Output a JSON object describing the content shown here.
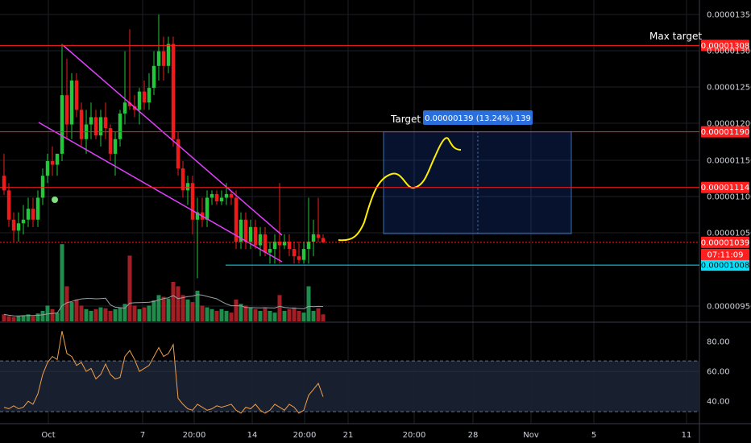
{
  "chart_data": {
    "type": "candlestick",
    "price_axis": {
      "ticks": [
        "0.00001350",
        "0.00001300",
        "0.00001250",
        "0.00001200",
        "0.00001150",
        "0.00001100",
        "0.00001050",
        "0.00000950"
      ],
      "range": [
        9.3e-06,
        1.37e-05
      ]
    },
    "rsi_axis": {
      "ticks": [
        "80.00",
        "60.00",
        "40.00"
      ],
      "range": [
        25,
        93
      ],
      "band": [
        33,
        67
      ]
    },
    "time_axis": {
      "ticks": [
        "Oct",
        "7",
        "20:00",
        "14",
        "20:00",
        "21",
        "20:00",
        "28",
        "Nov",
        "5",
        "11"
      ]
    },
    "levels": [
      {
        "label": "0.00001308",
        "value": 1.308e-05,
        "color": "#ff1f1f"
      },
      {
        "label": "0.00001190",
        "value": 1.19e-05,
        "color": "#ff1f1f"
      },
      {
        "label": "0.00001114",
        "value": 1.114e-05,
        "color": "#ff1f1f"
      },
      {
        "label": "0.00001039",
        "value": 1.039e-05,
        "color": "#ff1f1f",
        "dotted": true
      },
      {
        "label": "0.00001008",
        "value": 1.008e-05,
        "color": "#00e5ff"
      }
    ],
    "countdown": "07:11:09",
    "annotations": {
      "max_target": "Max target",
      "target_label": "Target",
      "target_box": "0.00000139 (13.24%) 139"
    },
    "candles": [
      [
        1.13e-05,
        1.16e-05,
        1.104e-05,
        1.11e-05
      ],
      [
        1.11e-05,
        1.12e-05,
        1.06e-05,
        1.07e-05
      ],
      [
        1.07e-05,
        1.08e-05,
        1.04e-05,
        1.055e-05
      ],
      [
        1.055e-05,
        1.08e-05,
        1.04e-05,
        1.065e-05
      ],
      [
        1.065e-05,
        1.09e-05,
        1.05e-05,
        1.07e-05
      ],
      [
        1.07e-05,
        1.1e-05,
        1.06e-05,
        1.085e-05
      ],
      [
        1.085e-05,
        1.1e-05,
        1.06e-05,
        1.07e-05
      ],
      [
        1.07e-05,
        1.11e-05,
        1.06e-05,
        1.1e-05
      ],
      [
        1.1e-05,
        1.14e-05,
        1.09e-05,
        1.13e-05
      ],
      [
        1.13e-05,
        1.16e-05,
        1.12e-05,
        1.15e-05
      ],
      [
        1.15e-05,
        1.17e-05,
        1.13e-05,
        1.145e-05
      ],
      [
        1.145e-05,
        1.16e-05,
        1.13e-05,
        1.16e-05
      ],
      [
        1.16e-05,
        1.31e-05,
        1.15e-05,
        1.24e-05
      ],
      [
        1.24e-05,
        1.29e-05,
        1.18e-05,
        1.2e-05
      ],
      [
        1.2e-05,
        1.27e-05,
        1.18e-05,
        1.26e-05
      ],
      [
        1.26e-05,
        1.27e-05,
        1.21e-05,
        1.22e-05
      ],
      [
        1.22e-05,
        1.23e-05,
        1.17e-05,
        1.18e-05
      ],
      [
        1.18e-05,
        1.22e-05,
        1.16e-05,
        1.2e-05
      ],
      [
        1.2e-05,
        1.23e-05,
        1.18e-05,
        1.21e-05
      ],
      [
        1.21e-05,
        1.22e-05,
        1.18e-05,
        1.185e-05
      ],
      [
        1.185e-05,
        1.22e-05,
        1.17e-05,
        1.21e-05
      ],
      [
        1.21e-05,
        1.23e-05,
        1.18e-05,
        1.195e-05
      ],
      [
        1.195e-05,
        1.2e-05,
        1.15e-05,
        1.16e-05
      ],
      [
        1.16e-05,
        1.19e-05,
        1.13e-05,
        1.18e-05
      ],
      [
        1.18e-05,
        1.22e-05,
        1.17e-05,
        1.215e-05
      ],
      [
        1.215e-05,
        1.3e-05,
        1.2e-05,
        1.23e-05
      ],
      [
        1.23e-05,
        1.33e-05,
        1.22e-05,
        1.225e-05
      ],
      [
        1.225e-05,
        1.24e-05,
        1.21e-05,
        1.22e-05
      ],
      [
        1.22e-05,
        1.25e-05,
        1.2e-05,
        1.245e-05
      ],
      [
        1.245e-05,
        1.26e-05,
        1.22e-05,
        1.23e-05
      ],
      [
        1.23e-05,
        1.27e-05,
        1.22e-05,
        1.25e-05
      ],
      [
        1.25e-05,
        1.3e-05,
        1.24e-05,
        1.28e-05
      ],
      [
        1.28e-05,
        1.35e-05,
        1.26e-05,
        1.3e-05
      ],
      [
        1.3e-05,
        1.32e-05,
        1.26e-05,
        1.28e-05
      ],
      [
        1.28e-05,
        1.32e-05,
        1.27e-05,
        1.31e-05
      ],
      [
        1.31e-05,
        1.32e-05,
        1.17e-05,
        1.18e-05
      ],
      [
        1.18e-05,
        1.19e-05,
        1.13e-05,
        1.14e-05
      ],
      [
        1.14e-05,
        1.15e-05,
        1.1e-05,
        1.11e-05
      ],
      [
        1.11e-05,
        1.13e-05,
        1.09e-05,
        1.12e-05
      ],
      [
        1.12e-05,
        1.13e-05,
        1.05e-05,
        1.07e-05
      ],
      [
        1.07e-05,
        1.1e-05,
        9.9e-06,
        1.08e-05
      ],
      [
        1.08e-05,
        1.1e-05,
        1.06e-05,
        1.07e-05
      ],
      [
        1.07e-05,
        1.11e-05,
        1.06e-05,
        1.1e-05
      ],
      [
        1.1e-05,
        1.11e-05,
        1.09e-05,
        1.105e-05
      ],
      [
        1.105e-05,
        1.11e-05,
        1.09e-05,
        1.095e-05
      ],
      [
        1.095e-05,
        1.11e-05,
        1.09e-05,
        1.1e-05
      ],
      [
        1.1e-05,
        1.12e-05,
        1.09e-05,
        1.105e-05
      ],
      [
        1.105e-05,
        1.11e-05,
        1.09e-05,
        1.1e-05
      ],
      [
        1.1e-05,
        1.11e-05,
        1.03e-05,
        1.04e-05
      ],
      [
        1.04e-05,
        1.08e-05,
        1.03e-05,
        1.07e-05
      ],
      [
        1.07e-05,
        1.08e-05,
        1.03e-05,
        1.04e-05
      ],
      [
        1.04e-05,
        1.07e-05,
        1.03e-05,
        1.06e-05
      ],
      [
        1.06e-05,
        1.07e-05,
        1.03e-05,
        1.035e-05
      ],
      [
        1.035e-05,
        1.06e-05,
        1.02e-05,
        1.05e-05
      ],
      [
        1.05e-05,
        1.06e-05,
        1.02e-05,
        1.025e-05
      ],
      [
        1.025e-05,
        1.04e-05,
        1.01e-05,
        1.03e-05
      ],
      [
        1.03e-05,
        1.05e-05,
        1.01e-05,
        1.04e-05
      ],
      [
        1.04e-05,
        1.12e-05,
        1.01e-05,
        1.035e-05
      ],
      [
        1.035e-05,
        1.05e-05,
        1.03e-05,
        1.04e-05
      ],
      [
        1.04e-05,
        1.05e-05,
        1.02e-05,
        1.03e-05
      ],
      [
        1.03e-05,
        1.04e-05,
        1.01e-05,
        1.02e-05
      ],
      [
        1.02e-05,
        1.04e-05,
        1.01e-05,
        1.015e-05
      ],
      [
        1.015e-05,
        1.04e-05,
        1.01e-05,
        1.03e-05
      ],
      [
        1.03e-05,
        1.1e-05,
        1.01e-05,
        1.04e-05
      ],
      [
        1.04e-05,
        1.07e-05,
        1.02e-05,
        1.05e-05
      ],
      [
        1.05e-05,
        1.1e-05,
        1.04e-05,
        1.045e-05
      ],
      [
        1.045e-05,
        1.05e-05,
        1.039e-05,
        1.039e-05
      ]
    ],
    "volume": [
      8,
      6,
      5,
      6,
      7,
      8,
      6,
      9,
      12,
      18,
      14,
      10,
      88,
      40,
      22,
      25,
      18,
      14,
      12,
      14,
      16,
      15,
      12,
      14,
      16,
      20,
      75,
      18,
      14,
      16,
      18,
      24,
      30,
      28,
      26,
      45,
      40,
      30,
      25,
      22,
      35,
      18,
      16,
      14,
      12,
      14,
      12,
      10,
      25,
      20,
      18,
      16,
      14,
      12,
      15,
      12,
      10,
      30,
      12,
      14,
      16,
      12,
      10,
      40,
      12,
      15,
      8
    ],
    "rsi": [
      36,
      35,
      37,
      35,
      36,
      40,
      38,
      45,
      58,
      66,
      70,
      68,
      87,
      72,
      70,
      64,
      66,
      60,
      62,
      55,
      58,
      65,
      58,
      55,
      56,
      70,
      74,
      68,
      60,
      62,
      64,
      70,
      76,
      70,
      72,
      78,
      42,
      38,
      35,
      34,
      38,
      36,
      34,
      35,
      37,
      36,
      37,
      38,
      34,
      32,
      36,
      35,
      38,
      34,
      32,
      34,
      38,
      36,
      34,
      38,
      36,
      32,
      34,
      44,
      48,
      52,
      43
    ]
  }
}
